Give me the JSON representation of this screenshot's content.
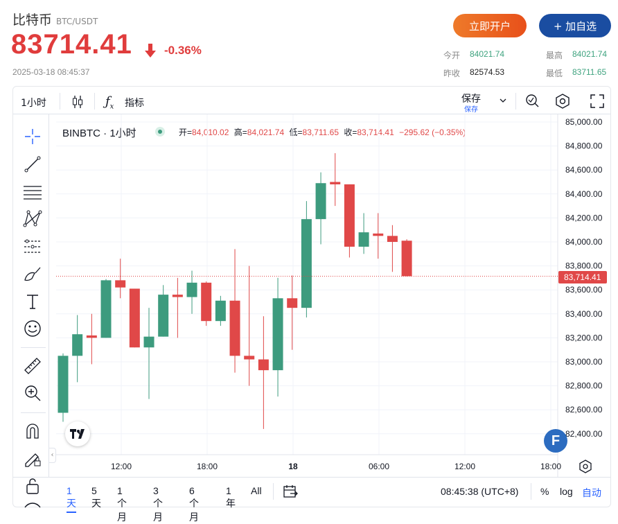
{
  "header": {
    "name": "比特币",
    "symbol": "BTC/USDT",
    "price": "83714.41",
    "change": "-0.36%",
    "timestamp": "2025-03-18 08:45:37",
    "open_label": "立即开户",
    "watch_label": "+ 加自选",
    "stats": {
      "open_label": "今开",
      "open": "84021.74",
      "high_label": "最高",
      "high": "84021.74",
      "prev_label": "昨收",
      "prev": "82574.53",
      "low_label": "最低",
      "low": "83711.65"
    }
  },
  "toolbar": {
    "interval": "1小时",
    "indicators": "指标",
    "save": "保存",
    "save_sub": "保存"
  },
  "legend": {
    "symbol": "BINBTC · 1小时",
    "o_label": "开=",
    "o": "84,010.02",
    "h_label": "高=",
    "h": "84,021.74",
    "l_label": "低=",
    "l": "83,711.65",
    "c_label": "收=",
    "c": "83,714.41",
    "chg": "−295.62 (−0.35%)"
  },
  "price_tag": "83,714.41",
  "ranges": [
    "1天",
    "5天",
    "1个月",
    "3个月",
    "6个月",
    "1年",
    "All"
  ],
  "footer": {
    "time": "08:45:38 (UTC+8)",
    "pct": "%",
    "log": "log",
    "auto": "自动"
  },
  "colors": {
    "up": "#3d9b7e",
    "down": "#e04848",
    "brand_orange": "#e8501a",
    "brand_blue": "#1a4da1"
  },
  "chart_data": {
    "type": "candlestick",
    "yticks": [
      "85,000.00",
      "84,800.00",
      "84,600.00",
      "84,400.00",
      "84,200.00",
      "84,000.00",
      "83,800.00",
      "83,600.00",
      "83,400.00",
      "83,200.00",
      "83,000.00",
      "82,800.00",
      "82,600.00",
      "82,400.00"
    ],
    "xticks": [
      "12:00",
      "18:00",
      "18",
      "06:00",
      "12:00",
      "18:00"
    ],
    "candles": [
      {
        "o": 82575,
        "h": 83070,
        "l": 82500,
        "c": 83050
      },
      {
        "o": 83050,
        "h": 83390,
        "l": 82830,
        "c": 83230
      },
      {
        "o": 83220,
        "h": 83400,
        "l": 82980,
        "c": 83200
      },
      {
        "o": 83200,
        "h": 83690,
        "l": 83200,
        "c": 83680
      },
      {
        "o": 83680,
        "h": 83860,
        "l": 83530,
        "c": 83620
      },
      {
        "o": 83610,
        "h": 83610,
        "l": 83120,
        "c": 83120
      },
      {
        "o": 83120,
        "h": 83450,
        "l": 82690,
        "c": 83210
      },
      {
        "o": 83210,
        "h": 83640,
        "l": 83210,
        "c": 83560
      },
      {
        "o": 83560,
        "h": 83700,
        "l": 83200,
        "c": 83540
      },
      {
        "o": 83540,
        "h": 83760,
        "l": 83400,
        "c": 83660
      },
      {
        "o": 83660,
        "h": 83670,
        "l": 83300,
        "c": 83340
      },
      {
        "o": 83340,
        "h": 83550,
        "l": 83300,
        "c": 83510
      },
      {
        "o": 83510,
        "h": 83940,
        "l": 82910,
        "c": 83050
      },
      {
        "o": 83050,
        "h": 83800,
        "l": 82800,
        "c": 83020
      },
      {
        "o": 83020,
        "h": 83380,
        "l": 82440,
        "c": 82930
      },
      {
        "o": 82930,
        "h": 83700,
        "l": 82710,
        "c": 83530
      },
      {
        "o": 83530,
        "h": 83720,
        "l": 83100,
        "c": 83450
      },
      {
        "o": 83450,
        "h": 84340,
        "l": 83370,
        "c": 84190
      },
      {
        "o": 84190,
        "h": 84580,
        "l": 83980,
        "c": 84490
      },
      {
        "o": 84500,
        "h": 84740,
        "l": 84300,
        "c": 84480
      },
      {
        "o": 84480,
        "h": 84480,
        "l": 83870,
        "c": 83960
      },
      {
        "o": 83960,
        "h": 84240,
        "l": 83900,
        "c": 84080
      },
      {
        "o": 84070,
        "h": 84240,
        "l": 83860,
        "c": 84050
      },
      {
        "o": 84050,
        "h": 84140,
        "l": 83750,
        "c": 84000
      },
      {
        "o": 84010,
        "h": 84022,
        "l": 83712,
        "c": 83714
      }
    ]
  }
}
